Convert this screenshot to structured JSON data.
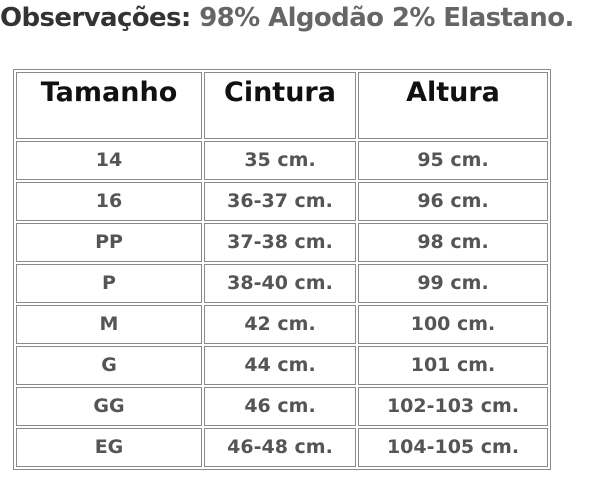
{
  "observations": {
    "label": "Observações:",
    "value": "98% Algodão 2% Elastano."
  },
  "table": {
    "headers": [
      "Tamanho",
      "Cintura",
      "Altura"
    ],
    "rows": [
      [
        "14",
        "35 cm.",
        "95 cm."
      ],
      [
        "16",
        "36-37 cm.",
        "96 cm."
      ],
      [
        "PP",
        "37-38 cm.",
        "98 cm."
      ],
      [
        "P",
        "38-40 cm.",
        "99 cm."
      ],
      [
        "M",
        "42 cm.",
        "100 cm."
      ],
      [
        "G",
        "44 cm.",
        "101 cm."
      ],
      [
        "GG",
        "46 cm.",
        "102-103 cm."
      ],
      [
        "EG",
        "46-48 cm.",
        "104-105 cm."
      ]
    ]
  }
}
